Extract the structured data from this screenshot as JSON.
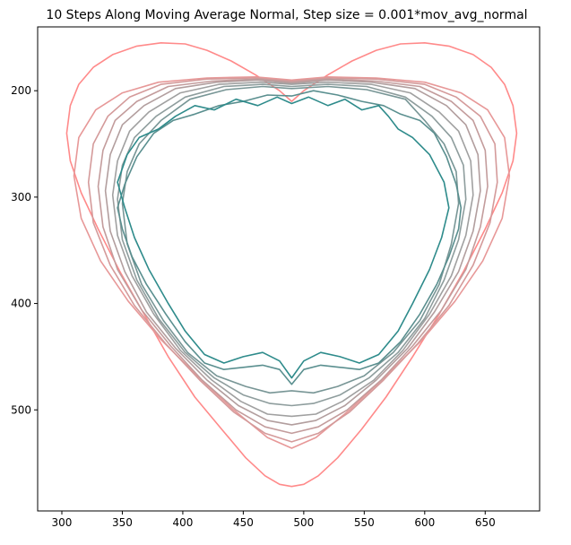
{
  "chart_data": {
    "type": "line",
    "title": "10 Steps Along Moving Average Normal, Step size = 0.001*mov_avg_normal",
    "xlabel": "",
    "ylabel": "",
    "xlim": [
      280,
      695
    ],
    "ylim": [
      595,
      140
    ],
    "y_inverted": true,
    "grid": false,
    "x_ticks": [
      300,
      350,
      400,
      450,
      500,
      550,
      600,
      650
    ],
    "y_ticks": [
      200,
      300,
      400,
      500
    ],
    "color_start": "#ff8080",
    "color_end": "#2e8b8b",
    "series": [
      {
        "color": "#ff8a8a",
        "x": [
          490,
          500,
          520,
          540,
          560,
          580,
          600,
          620,
          640,
          655,
          666,
          673,
          676,
          673,
          664,
          650,
          632,
          612,
          590,
          568,
          548,
          528,
          512,
          500,
          490,
          480,
          468,
          452,
          432,
          410,
          388,
          368,
          348,
          330,
          316,
          307,
          304,
          307,
          314,
          326,
          342,
          362,
          382,
          402,
          420,
          440,
          460,
          480,
          490
        ],
        "y": [
          210,
          200,
          185,
          172,
          162,
          156,
          155,
          158,
          166,
          178,
          194,
          214,
          240,
          266,
          296,
          330,
          370,
          410,
          450,
          488,
          518,
          545,
          562,
          570,
          572,
          570,
          562,
          545,
          518,
          488,
          450,
          410,
          370,
          330,
          296,
          266,
          240,
          214,
          194,
          178,
          166,
          158,
          155,
          156,
          162,
          172,
          185,
          200,
          210
        ]
      },
      {
        "color": "#e79898",
        "x": [
          490,
          520,
          560,
          600,
          630,
          652,
          666,
          670,
          664,
          648,
          625,
          598,
          568,
          538,
          510,
          490,
          470,
          442,
          412,
          382,
          355,
          332,
          316,
          310,
          314,
          328,
          350,
          380,
          420,
          460,
          490
        ],
        "y": [
          190,
          187,
          188,
          192,
          202,
          218,
          244,
          280,
          320,
          360,
          398,
          434,
          468,
          500,
          526,
          536,
          526,
          500,
          468,
          434,
          398,
          360,
          320,
          280,
          244,
          218,
          202,
          192,
          188,
          187,
          190
        ]
      },
      {
        "color": "#d49a9a",
        "x": [
          490,
          520,
          560,
          600,
          626,
          646,
          658,
          660,
          654,
          640,
          620,
          594,
          566,
          538,
          512,
          490,
          468,
          442,
          414,
          386,
          360,
          340,
          326,
          322,
          326,
          338,
          356,
          382,
          420,
          460,
          490
        ],
        "y": [
          191,
          188,
          189,
          194,
          206,
          224,
          250,
          286,
          324,
          364,
          402,
          438,
          472,
          502,
          522,
          530,
          522,
          502,
          472,
          438,
          402,
          364,
          324,
          286,
          250,
          224,
          206,
          194,
          189,
          188,
          191
        ]
      },
      {
        "color": "#c39c9c",
        "x": [
          490,
          520,
          560,
          596,
          622,
          640,
          650,
          652,
          646,
          634,
          614,
          590,
          564,
          536,
          512,
          490,
          468,
          444,
          416,
          390,
          366,
          346,
          334,
          330,
          334,
          344,
          362,
          388,
          424,
          462,
          490
        ],
        "y": [
          192,
          189,
          191,
          196,
          210,
          228,
          256,
          290,
          328,
          368,
          406,
          440,
          472,
          500,
          516,
          522,
          516,
          500,
          472,
          440,
          406,
          368,
          328,
          290,
          256,
          228,
          210,
          196,
          191,
          189,
          192
        ]
      },
      {
        "color": "#b29e9e",
        "x": [
          490,
          520,
          556,
          592,
          618,
          634,
          644,
          646,
          640,
          628,
          608,
          586,
          560,
          534,
          510,
          490,
          470,
          446,
          420,
          394,
          370,
          352,
          340,
          336,
          340,
          350,
          368,
          394,
          428,
          462,
          490
        ],
        "y": [
          193,
          190,
          192,
          198,
          214,
          232,
          260,
          294,
          332,
          370,
          408,
          442,
          472,
          496,
          510,
          514,
          510,
          496,
          472,
          442,
          408,
          370,
          332,
          294,
          260,
          232,
          214,
          198,
          192,
          190,
          193
        ]
      },
      {
        "color": "#a0a0a0",
        "x": [
          490,
          520,
          556,
          588,
          612,
          628,
          638,
          640,
          634,
          622,
          604,
          582,
          558,
          532,
          510,
          490,
          470,
          448,
          424,
          398,
          376,
          358,
          346,
          342,
          346,
          356,
          372,
          398,
          430,
          464,
          490
        ],
        "y": [
          194,
          192,
          194,
          202,
          220,
          238,
          266,
          298,
          336,
          374,
          410,
          444,
          472,
          492,
          504,
          506,
          504,
          492,
          472,
          444,
          410,
          374,
          336,
          298,
          266,
          238,
          220,
          202,
          194,
          192,
          194
        ]
      },
      {
        "color": "#8e9d9d",
        "x": [
          490,
          520,
          552,
          584,
          606,
          622,
          632,
          634,
          628,
          616,
          600,
          578,
          554,
          530,
          508,
          490,
          472,
          450,
          426,
          402,
          380,
          362,
          350,
          346,
          350,
          360,
          378,
          402,
          434,
          466,
          490
        ],
        "y": [
          196,
          194,
          196,
          206,
          224,
          244,
          270,
          302,
          340,
          378,
          414,
          446,
          470,
          486,
          494,
          496,
          494,
          486,
          470,
          446,
          414,
          378,
          340,
          302,
          270,
          244,
          224,
          206,
          196,
          194,
          196
        ]
      },
      {
        "color": "#789696",
        "x": [
          490,
          520,
          552,
          584,
          600,
          616,
          626,
          628,
          622,
          612,
          596,
          574,
          550,
          528,
          508,
          490,
          472,
          452,
          428,
          404,
          384,
          366,
          354,
          350,
          354,
          364,
          382,
          406,
          436,
          466,
          490
        ],
        "y": [
          198,
          196,
          199,
          208,
          228,
          250,
          276,
          306,
          344,
          382,
          416,
          446,
          468,
          478,
          484,
          482,
          484,
          478,
          468,
          446,
          416,
          382,
          344,
          306,
          276,
          250,
          228,
          208,
          199,
          196,
          198
        ]
      },
      {
        "color": "#5a8f8f",
        "x": [
          490,
          508,
          528,
          548,
          566,
          580,
          596,
          608,
          618,
          626,
          630,
          628,
          620,
          610,
          596,
          580,
          562,
          546,
          530,
          514,
          500,
          490,
          480,
          466,
          450,
          434,
          418,
          402,
          386,
          370,
          358,
          350,
          346,
          352,
          362,
          376,
          392,
          410,
          430,
          450,
          470,
          490
        ],
        "y": [
          205,
          200,
          204,
          210,
          214,
          222,
          228,
          240,
          262,
          288,
          310,
          330,
          356,
          382,
          410,
          436,
          456,
          462,
          460,
          458,
          462,
          476,
          462,
          458,
          460,
          462,
          456,
          436,
          410,
          382,
          356,
          330,
          310,
          288,
          262,
          240,
          228,
          222,
          214,
          210,
          204,
          205
        ]
      },
      {
        "color": "#2e8b8b",
        "x": [
          490,
          504,
          520,
          534,
          548,
          562,
          570,
          578,
          590,
          604,
          616,
          620,
          614,
          604,
          590,
          578,
          562,
          546,
          530,
          514,
          500,
          490,
          480,
          466,
          450,
          434,
          418,
          402,
          388,
          372,
          360,
          352,
          346,
          354,
          364,
          380,
          394,
          410,
          426,
          444,
          462,
          478,
          490
        ],
        "y": [
          212,
          206,
          214,
          208,
          218,
          214,
          224,
          236,
          244,
          260,
          286,
          310,
          338,
          368,
          400,
          426,
          448,
          456,
          450,
          446,
          454,
          470,
          454,
          446,
          450,
          456,
          448,
          426,
          400,
          368,
          338,
          310,
          286,
          260,
          244,
          236,
          224,
          214,
          218,
          208,
          214,
          206,
          212
        ]
      }
    ]
  }
}
